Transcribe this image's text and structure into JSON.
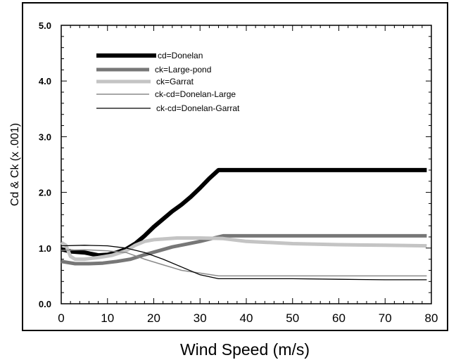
{
  "chart_data": {
    "type": "line",
    "xlabel": "Wind Speed (m/s)",
    "ylabel": "Cd & Ck (x .001)",
    "xlim": [
      0,
      80
    ],
    "ylim": [
      0,
      5
    ],
    "xticks": [
      "0",
      "10",
      "20",
      "30",
      "40",
      "50",
      "60",
      "70",
      "80"
    ],
    "yticks": [
      "0.0",
      "1.0",
      "2.0",
      "3.0",
      "4.0",
      "5.0"
    ],
    "grid": false,
    "legend_position": "top-left",
    "series": [
      {
        "name": "cd=Donelan",
        "color": "#000000",
        "points": [
          [
            0,
            0.98
          ],
          [
            2,
            0.94
          ],
          [
            5,
            0.92
          ],
          [
            8,
            0.87
          ],
          [
            10,
            0.88
          ],
          [
            12,
            0.92
          ],
          [
            14,
            0.98
          ],
          [
            16,
            1.08
          ],
          [
            18,
            1.22
          ],
          [
            20,
            1.38
          ],
          [
            22,
            1.52
          ],
          [
            24,
            1.66
          ],
          [
            26,
            1.78
          ],
          [
            28,
            1.92
          ],
          [
            30,
            2.08
          ],
          [
            32,
            2.25
          ],
          [
            34,
            2.4
          ],
          [
            40,
            2.4
          ],
          [
            50,
            2.4
          ],
          [
            60,
            2.4
          ],
          [
            70,
            2.4
          ],
          [
            79,
            2.4
          ]
        ]
      },
      {
        "name": "ck=Large-pond",
        "color": "#777777",
        "points": [
          [
            0,
            0.76
          ],
          [
            3,
            0.72
          ],
          [
            6,
            0.72
          ],
          [
            9,
            0.73
          ],
          [
            12,
            0.76
          ],
          [
            15,
            0.8
          ],
          [
            18,
            0.88
          ],
          [
            21,
            0.95
          ],
          [
            24,
            1.02
          ],
          [
            27,
            1.07
          ],
          [
            30,
            1.12
          ],
          [
            33,
            1.18
          ],
          [
            35,
            1.22
          ],
          [
            40,
            1.22
          ],
          [
            50,
            1.22
          ],
          [
            60,
            1.22
          ],
          [
            70,
            1.22
          ],
          [
            79,
            1.22
          ]
        ]
      },
      {
        "name": "ck=Garrat",
        "color": "#c4c4c4",
        "points": [
          [
            0,
            1.1
          ],
          [
            1,
            1.05
          ],
          [
            2,
            0.85
          ],
          [
            3,
            0.8
          ],
          [
            5,
            0.8
          ],
          [
            8,
            0.83
          ],
          [
            11,
            0.87
          ],
          [
            14,
            0.95
          ],
          [
            16,
            1.05
          ],
          [
            18,
            1.12
          ],
          [
            20,
            1.15
          ],
          [
            25,
            1.18
          ],
          [
            30,
            1.18
          ],
          [
            35,
            1.17
          ],
          [
            40,
            1.12
          ],
          [
            50,
            1.08
          ],
          [
            60,
            1.06
          ],
          [
            70,
            1.05
          ],
          [
            79,
            1.04
          ]
        ]
      },
      {
        "name": "ck-cd=Donelan-Large",
        "color": "#8a8a8a",
        "points": [
          [
            0,
            0.96
          ],
          [
            5,
            0.97
          ],
          [
            10,
            0.95
          ],
          [
            14,
            0.92
          ],
          [
            18,
            0.8
          ],
          [
            22,
            0.7
          ],
          [
            26,
            0.6
          ],
          [
            30,
            0.55
          ],
          [
            34,
            0.5
          ],
          [
            40,
            0.5
          ],
          [
            50,
            0.5
          ],
          [
            60,
            0.5
          ],
          [
            70,
            0.5
          ],
          [
            79,
            0.5
          ]
        ]
      },
      {
        "name": "ck-cd=Donelan-Garrat",
        "color": "#000000",
        "points": [
          [
            0,
            1.04
          ],
          [
            5,
            1.05
          ],
          [
            10,
            1.04
          ],
          [
            14,
            1.0
          ],
          [
            18,
            0.92
          ],
          [
            22,
            0.8
          ],
          [
            26,
            0.66
          ],
          [
            30,
            0.52
          ],
          [
            34,
            0.45
          ],
          [
            40,
            0.45
          ],
          [
            50,
            0.45
          ],
          [
            60,
            0.44
          ],
          [
            70,
            0.43
          ],
          [
            79,
            0.43
          ]
        ]
      }
    ]
  }
}
